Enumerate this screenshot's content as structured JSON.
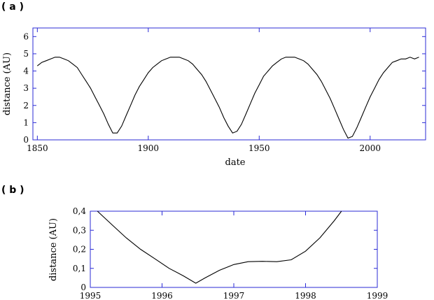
{
  "chart_data": [
    {
      "type": "line",
      "panel_label": "( a )",
      "title": "",
      "xlabel": "date",
      "ylabel": "distance (AU)",
      "xlim": [
        1848,
        2025
      ],
      "ylim": [
        0,
        6.5
      ],
      "xticks": [
        1850,
        1900,
        1950,
        2000
      ],
      "yticks": [
        0,
        1,
        2,
        3,
        4,
        5,
        6
      ],
      "grid": false,
      "series": [
        {
          "x": [
            1850,
            1852,
            1854,
            1856,
            1858,
            1860,
            1862,
            1864,
            1866,
            1868,
            1870,
            1872,
            1874,
            1876,
            1878,
            1880,
            1882,
            1884,
            1886,
            1888,
            1890,
            1892,
            1894,
            1896,
            1898,
            1900,
            1902,
            1904,
            1906,
            1908,
            1910,
            1912,
            1914,
            1916,
            1918,
            1920,
            1922,
            1924,
            1926,
            1928,
            1930,
            1932,
            1934,
            1936,
            1938,
            1940,
            1942,
            1944,
            1946,
            1948,
            1950,
            1952,
            1954,
            1956,
            1958,
            1960,
            1962,
            1964,
            1966,
            1968,
            1970,
            1972,
            1974,
            1976,
            1978,
            1980,
            1982,
            1984,
            1986,
            1988,
            1990,
            1992,
            1994,
            1996,
            1998,
            2000,
            2002,
            2004,
            2006,
            2008,
            2010,
            2012,
            2014,
            2016,
            2018,
            2020,
            2022
          ],
          "y": [
            4.3,
            4.5,
            4.6,
            4.7,
            4.8,
            4.8,
            4.7,
            4.6,
            4.4,
            4.2,
            3.8,
            3.4,
            3.0,
            2.5,
            2.0,
            1.5,
            0.9,
            0.4,
            0.4,
            0.8,
            1.4,
            2.0,
            2.6,
            3.1,
            3.5,
            3.9,
            4.2,
            4.4,
            4.6,
            4.7,
            4.8,
            4.8,
            4.8,
            4.7,
            4.6,
            4.4,
            4.1,
            3.8,
            3.4,
            2.9,
            2.4,
            1.9,
            1.3,
            0.8,
            0.4,
            0.5,
            0.9,
            1.5,
            2.1,
            2.7,
            3.2,
            3.7,
            4.0,
            4.3,
            4.5,
            4.7,
            4.8,
            4.8,
            4.8,
            4.7,
            4.6,
            4.4,
            4.1,
            3.8,
            3.4,
            2.9,
            2.4,
            1.8,
            1.2,
            0.6,
            0.1,
            0.2,
            0.7,
            1.3,
            1.9,
            2.5,
            3.0,
            3.5,
            3.9,
            4.2,
            4.5,
            4.6,
            4.7,
            4.7,
            4.8,
            4.7,
            4.8
          ]
        }
      ]
    },
    {
      "type": "line",
      "panel_label": "( b )",
      "title": "",
      "xlabel": "",
      "ylabel": "distance (AU)",
      "xlim": [
        1995,
        1999
      ],
      "ylim": [
        0,
        0.4
      ],
      "xticks": [
        1995,
        1996,
        1997,
        1998,
        1999
      ],
      "yticks": [
        0,
        0.1,
        0.2,
        0.3,
        0.4
      ],
      "ytick_labels": [
        "0",
        "0,1",
        "0,2",
        "0,3",
        "0,4"
      ],
      "grid": false,
      "series": [
        {
          "x": [
            1995.1,
            1995.3,
            1995.5,
            1995.7,
            1995.9,
            1996.1,
            1996.3,
            1996.47,
            1996.6,
            1996.8,
            1997.0,
            1997.2,
            1997.4,
            1997.6,
            1997.8,
            1998.0,
            1998.2,
            1998.4,
            1998.5
          ],
          "y": [
            0.4,
            0.33,
            0.26,
            0.2,
            0.15,
            0.1,
            0.06,
            0.022,
            0.05,
            0.09,
            0.12,
            0.135,
            0.137,
            0.135,
            0.145,
            0.19,
            0.26,
            0.35,
            0.4
          ]
        }
      ]
    }
  ]
}
